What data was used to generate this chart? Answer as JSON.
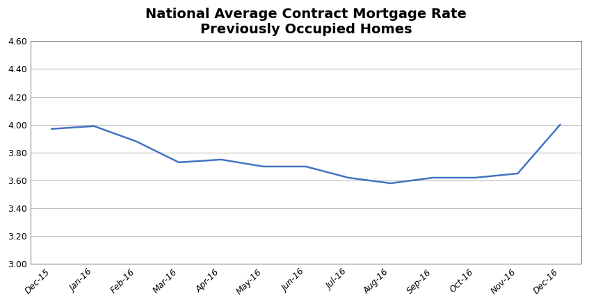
{
  "title": "National Average Contract Mortgage Rate\nPreviously Occupied Homes",
  "categories": [
    "Dec-15",
    "Jan-16",
    "Feb-16",
    "Mar-16",
    "Apr-16",
    "May-16",
    "Jun-16",
    "Jul-16",
    "Aug-16",
    "Sep-16",
    "Oct-16",
    "Nov-16",
    "Dec-16"
  ],
  "values": [
    3.97,
    3.99,
    3.88,
    3.73,
    3.75,
    3.7,
    3.7,
    3.62,
    3.58,
    3.62,
    3.62,
    3.65,
    4.0
  ],
  "line_color": "#4472C4",
  "line_width": 1.8,
  "ylim": [
    3.0,
    4.6
  ],
  "yticks": [
    3.0,
    3.2,
    3.4,
    3.6,
    3.8,
    4.0,
    4.2,
    4.4,
    4.6
  ],
  "title_fontsize": 14,
  "tick_fontsize": 9,
  "background_color": "#ffffff",
  "grid_color": "#c0c0c0",
  "title_fontweight": "bold",
  "figsize": [
    8.47,
    4.38
  ],
  "dpi": 100
}
